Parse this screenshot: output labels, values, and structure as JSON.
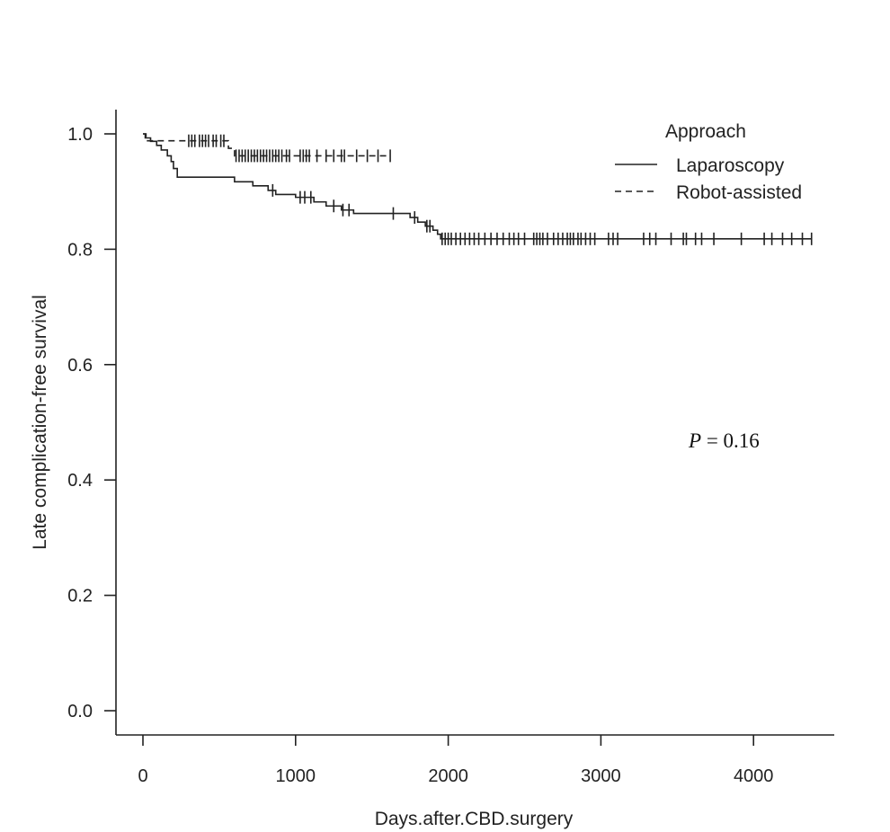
{
  "chart_data": {
    "type": "line",
    "subtype": "kaplan-meier",
    "xlabel": "Days.after.CBD.surgery",
    "ylabel": "Late complication-free survival",
    "xlim": [
      0,
      4400
    ],
    "ylim": [
      0,
      1.0
    ],
    "xticks": [
      0,
      1000,
      2000,
      3000,
      4000
    ],
    "yticks": [
      0.0,
      0.2,
      0.4,
      0.6,
      0.8,
      1.0
    ],
    "legend": {
      "title": "Approach",
      "placement": "top-right",
      "entries": [
        "Laparoscopy",
        "Robot-assisted"
      ]
    },
    "annotation": {
      "label": "P",
      "text": " = 0.16"
    },
    "series": [
      {
        "name": "Laparoscopy",
        "style": "solid",
        "steps": [
          [
            0,
            1.0
          ],
          [
            15,
            0.993
          ],
          [
            50,
            0.987
          ],
          [
            90,
            0.98
          ],
          [
            120,
            0.972
          ],
          [
            160,
            0.962
          ],
          [
            185,
            0.952
          ],
          [
            200,
            0.94
          ],
          [
            225,
            0.925
          ],
          [
            600,
            0.917
          ],
          [
            720,
            0.91
          ],
          [
            820,
            0.902
          ],
          [
            870,
            0.895
          ],
          [
            1000,
            0.89
          ],
          [
            1120,
            0.882
          ],
          [
            1200,
            0.875
          ],
          [
            1300,
            0.868
          ],
          [
            1380,
            0.862
          ],
          [
            1750,
            0.855
          ],
          [
            1800,
            0.847
          ],
          [
            1850,
            0.84
          ],
          [
            1900,
            0.833
          ],
          [
            1930,
            0.826
          ],
          [
            1950,
            0.818
          ]
        ],
        "end_x": 4380,
        "censored": [
          [
            850,
            0.902
          ],
          [
            1030,
            0.89
          ],
          [
            1060,
            0.89
          ],
          [
            1100,
            0.89
          ],
          [
            1250,
            0.875
          ],
          [
            1310,
            0.868
          ],
          [
            1350,
            0.868
          ],
          [
            1640,
            0.862
          ],
          [
            1780,
            0.855
          ],
          [
            1860,
            0.84
          ],
          [
            1880,
            0.84
          ],
          [
            1960,
            0.818
          ],
          [
            1980,
            0.818
          ],
          [
            2000,
            0.818
          ],
          [
            2020,
            0.818
          ],
          [
            2050,
            0.818
          ],
          [
            2080,
            0.818
          ],
          [
            2110,
            0.818
          ],
          [
            2140,
            0.818
          ],
          [
            2170,
            0.818
          ],
          [
            2200,
            0.818
          ],
          [
            2240,
            0.818
          ],
          [
            2280,
            0.818
          ],
          [
            2320,
            0.818
          ],
          [
            2360,
            0.818
          ],
          [
            2400,
            0.818
          ],
          [
            2430,
            0.818
          ],
          [
            2460,
            0.818
          ],
          [
            2500,
            0.818
          ],
          [
            2560,
            0.818
          ],
          [
            2580,
            0.818
          ],
          [
            2600,
            0.818
          ],
          [
            2620,
            0.818
          ],
          [
            2650,
            0.818
          ],
          [
            2690,
            0.818
          ],
          [
            2720,
            0.818
          ],
          [
            2750,
            0.818
          ],
          [
            2780,
            0.818
          ],
          [
            2800,
            0.818
          ],
          [
            2820,
            0.818
          ],
          [
            2850,
            0.818
          ],
          [
            2870,
            0.818
          ],
          [
            2900,
            0.818
          ],
          [
            2930,
            0.818
          ],
          [
            2960,
            0.818
          ],
          [
            3050,
            0.818
          ],
          [
            3080,
            0.818
          ],
          [
            3110,
            0.818
          ],
          [
            3280,
            0.818
          ],
          [
            3320,
            0.818
          ],
          [
            3360,
            0.818
          ],
          [
            3460,
            0.818
          ],
          [
            3540,
            0.818
          ],
          [
            3560,
            0.818
          ],
          [
            3620,
            0.818
          ],
          [
            3660,
            0.818
          ],
          [
            3740,
            0.818
          ],
          [
            3920,
            0.818
          ],
          [
            4070,
            0.818
          ],
          [
            4120,
            0.818
          ],
          [
            4190,
            0.818
          ],
          [
            4250,
            0.818
          ],
          [
            4320,
            0.818
          ],
          [
            4380,
            0.818
          ]
        ]
      },
      {
        "name": "Robot-assisted",
        "style": "dashed",
        "steps": [
          [
            0,
            1.0
          ],
          [
            20,
            0.988
          ],
          [
            560,
            0.975
          ],
          [
            600,
            0.962
          ]
        ],
        "end_x": 1620,
        "censored": [
          [
            300,
            0.988
          ],
          [
            320,
            0.988
          ],
          [
            340,
            0.988
          ],
          [
            370,
            0.988
          ],
          [
            390,
            0.988
          ],
          [
            410,
            0.988
          ],
          [
            430,
            0.988
          ],
          [
            460,
            0.988
          ],
          [
            480,
            0.988
          ],
          [
            510,
            0.988
          ],
          [
            530,
            0.988
          ],
          [
            610,
            0.962
          ],
          [
            630,
            0.962
          ],
          [
            650,
            0.962
          ],
          [
            670,
            0.962
          ],
          [
            690,
            0.962
          ],
          [
            710,
            0.962
          ],
          [
            730,
            0.962
          ],
          [
            750,
            0.962
          ],
          [
            770,
            0.962
          ],
          [
            790,
            0.962
          ],
          [
            810,
            0.962
          ],
          [
            830,
            0.962
          ],
          [
            850,
            0.962
          ],
          [
            870,
            0.962
          ],
          [
            890,
            0.962
          ],
          [
            910,
            0.962
          ],
          [
            940,
            0.962
          ],
          [
            960,
            0.962
          ],
          [
            1030,
            0.962
          ],
          [
            1050,
            0.962
          ],
          [
            1070,
            0.962
          ],
          [
            1090,
            0.962
          ],
          [
            1140,
            0.962
          ],
          [
            1200,
            0.962
          ],
          [
            1250,
            0.962
          ],
          [
            1300,
            0.962
          ],
          [
            1320,
            0.962
          ],
          [
            1400,
            0.962
          ],
          [
            1470,
            0.962
          ],
          [
            1540,
            0.962
          ],
          [
            1620,
            0.962
          ]
        ]
      }
    ]
  }
}
